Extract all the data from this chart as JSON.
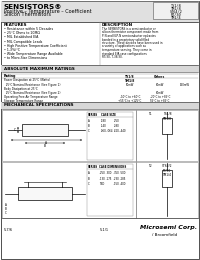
{
  "title": "SENSISTORS®",
  "subtitle1": "Positive – Temperature – Coefficient",
  "subtitle2": "Silicon Thermistors",
  "part_numbers": [
    "TS1/8",
    "TM1/8",
    "ST64/2",
    "RT/30",
    "TM1/4"
  ],
  "features_title": "FEATURES",
  "features": [
    "• Resistance within 5 Decades",
    "• 25°C Ohms to 10MΩ",
    "• MIL Established EIA",
    "• MIL Compatible Leads",
    "• High Positive Temperature Coefficient",
    "• 1-3%/°C",
    "• Wide Temperature Range Available",
    "• to Micro-Size Dimensions"
  ],
  "description_title": "DESCRIPTION",
  "description_lines": [
    "The SENSISTORS is a semiconductor or",
    "silicon thermistor component made from",
    "P-N and N-P-N semiconductor epitaxies",
    "bonded in a proprietary solid filled",
    "structure. These devices have been used in",
    "a variety of applications such as",
    "temperature sensing. They come in",
    "standard EIA case configurations",
    "RT/30, T-38/30."
  ],
  "electrical_title": "ABSOLUTE MAXIMUM RATINGS",
  "col_h1": "Rating",
  "col_h2": "TS1/8\nTM1/8",
  "col_h3": "Others",
  "rating_rows": [
    [
      "Power Dissipation at 25°C (Watts)",
      "",
      "",
      ""
    ],
    [
      "  25°C Nominal Resistance (See Figure 1)",
      "50mW",
      "60mW",
      "150mW"
    ],
    [
      "Body Dissipation at 25°C",
      "",
      "",
      ""
    ],
    [
      "  25°C Nominal Resistance (See Figure 2)",
      "",
      "60mW",
      ""
    ],
    [
      "Operating Free Air Temperature Range",
      "-10°C to +60°C",
      "-20°C to +85°C",
      ""
    ],
    [
      "Storage Temperature Range",
      "+55°C to +125°C",
      "55°C to +85°C",
      ""
    ]
  ],
  "mech_title": "MECHANICAL SPECIFICATIONS",
  "pkg1_label": "TS1/8\nTM1/8",
  "pkg2_label": "ST64/2\nRT/30\nTM1/4",
  "fig1_label": "T1",
  "fig2_label": "T2",
  "t1_head1": "SERIES",
  "t1_head2": "CASE SIZE",
  "t1_head3": "ST64/2",
  "t1_data": [
    [
      "A",
      ".180",
      ".250"
    ],
    [
      "B",
      ".140",
      ".280"
    ],
    [
      "C",
      ".060-.064",
      ".420-.440"
    ]
  ],
  "t2_head1": "SERIES",
  "t2_head2": "CASE DIMENSIONS",
  "t2_data": [
    [
      "A",
      ".250 .300",
      ".350 .500"
    ],
    [
      "B",
      ".130 .175",
      ".230 .285"
    ],
    [
      "C",
      "TBD",
      ".150 .400"
    ]
  ],
  "logo_text": "Microsemi Corp.",
  "logo_sub": "/ Broomfield",
  "footer_left": "5-7/6",
  "footer_mid": "5-1/1",
  "bg_color": "#f5f5f5",
  "white": "#ffffff",
  "line_color": "#444444",
  "gray": "#bbbbbb"
}
